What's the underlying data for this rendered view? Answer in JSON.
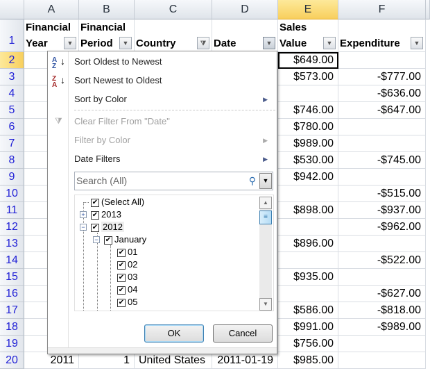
{
  "columns": [
    "A",
    "B",
    "C",
    "D",
    "E",
    "F"
  ],
  "headers": [
    "Financial Year",
    "Financial Period",
    "Country",
    "Date",
    "Sales Value",
    "Expenditure"
  ],
  "rows": [
    {
      "n": "1"
    },
    {
      "n": "2",
      "E": "$649.00",
      "F": ""
    },
    {
      "n": "3",
      "E": "$573.00",
      "F": "-$777.00"
    },
    {
      "n": "4",
      "E": "",
      "F": "-$636.00"
    },
    {
      "n": "5",
      "E": "$746.00",
      "F": "-$647.00"
    },
    {
      "n": "6",
      "E": "$780.00",
      "F": ""
    },
    {
      "n": "7",
      "E": "$989.00",
      "F": ""
    },
    {
      "n": "8",
      "E": "$530.00",
      "F": "-$745.00"
    },
    {
      "n": "9",
      "E": "$942.00",
      "F": ""
    },
    {
      "n": "10",
      "E": "",
      "F": "-$515.00"
    },
    {
      "n": "11",
      "E": "$898.00",
      "F": "-$937.00"
    },
    {
      "n": "12",
      "E": "",
      "F": "-$962.00"
    },
    {
      "n": "13",
      "E": "$896.00",
      "F": ""
    },
    {
      "n": "14",
      "E": "",
      "F": "-$522.00"
    },
    {
      "n": "15",
      "E": "$935.00",
      "F": ""
    },
    {
      "n": "16",
      "E": "",
      "F": "-$627.00"
    },
    {
      "n": "17",
      "E": "$586.00",
      "F": "-$818.00"
    },
    {
      "n": "18",
      "E": "$991.00",
      "F": "-$989.00"
    },
    {
      "n": "19",
      "E": "$756.00",
      "F": ""
    },
    {
      "n": "20",
      "A": "2011",
      "B": "1",
      "C": "United States",
      "D": "2011-01-19",
      "E": "$985.00",
      "F": ""
    }
  ],
  "menu": {
    "items": [
      "Sort Oldest to Newest",
      "Sort Newest to Oldest",
      "Sort by Color",
      "Clear Filter From \"Date\"",
      "Filter by Color",
      "Date Filters"
    ],
    "search_placeholder": "Search (All)",
    "tree": [
      "(Select All)",
      "2013",
      "2012",
      "January",
      "01",
      "02",
      "03",
      "04",
      "05"
    ],
    "ok": "OK",
    "cancel": "Cancel"
  }
}
